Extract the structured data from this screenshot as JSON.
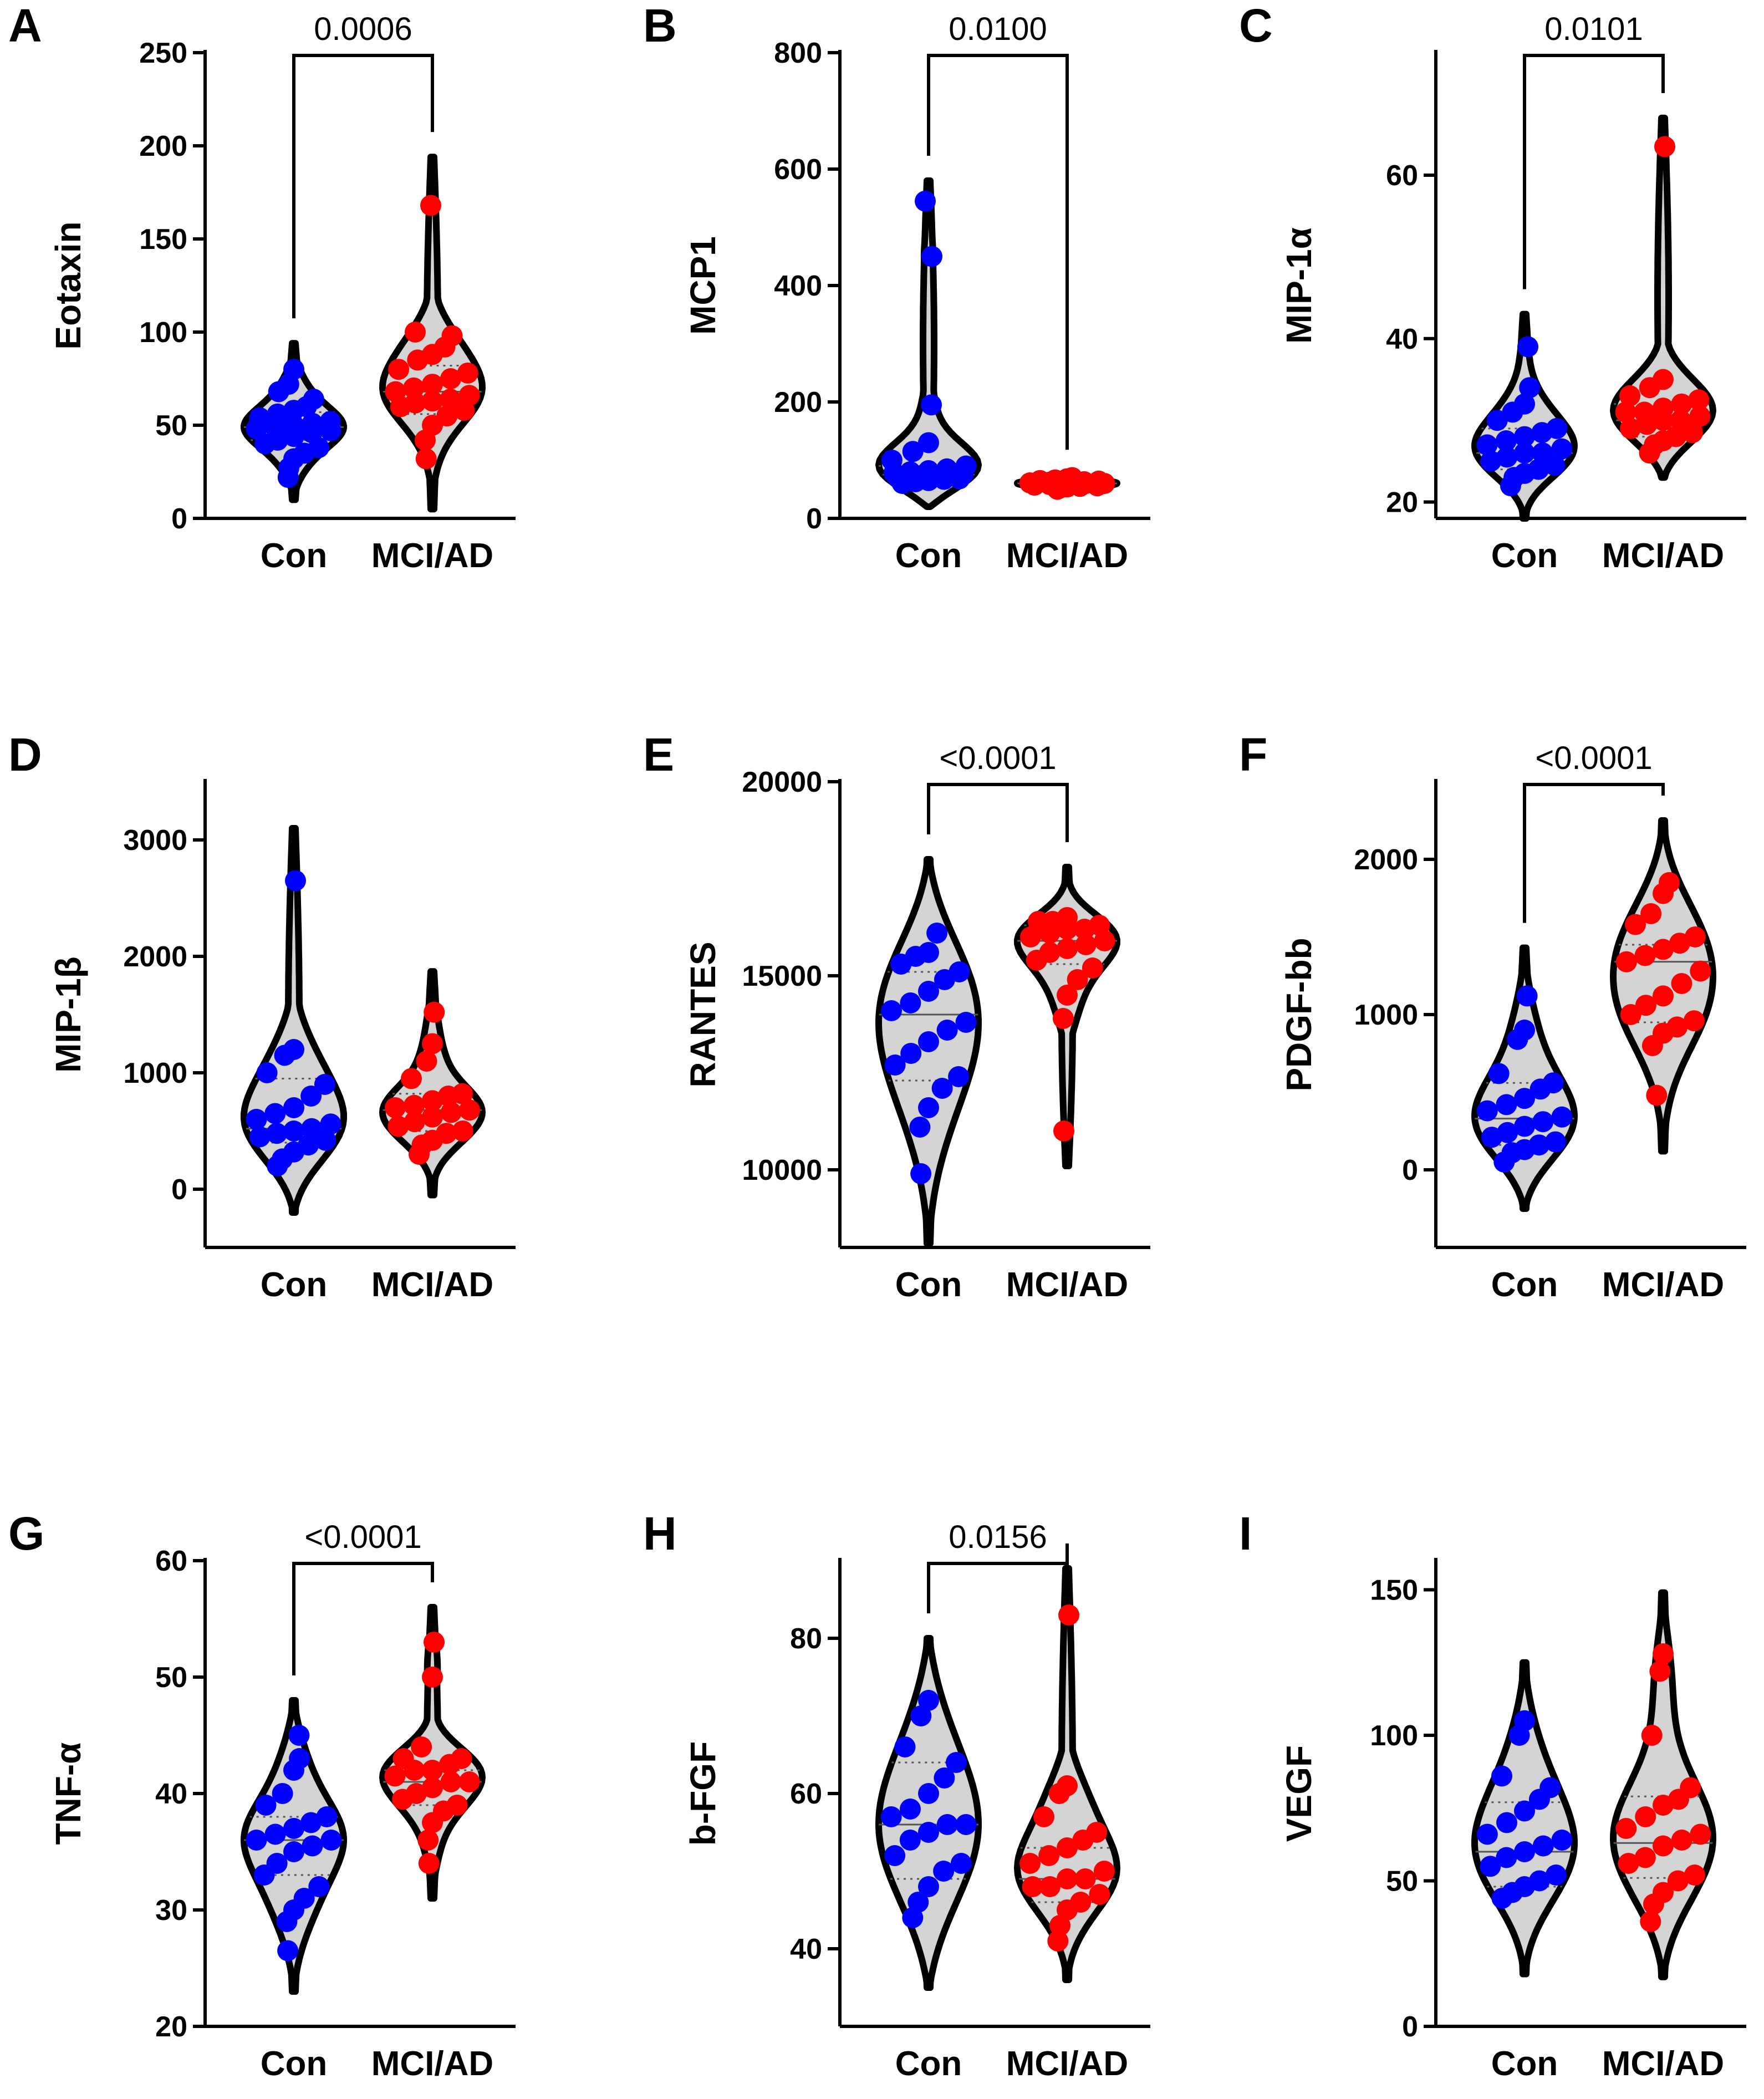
{
  "colors": {
    "con": "#0000ff",
    "mci": "#ff0000",
    "violin_fill": "#d4d4d4"
  },
  "categories": [
    "Con",
    "MCI/AD"
  ],
  "chart_data": [
    {
      "type": "violin",
      "panel": "A",
      "ylabel": "Eotaxin",
      "ylim": [
        0,
        250
      ],
      "yticks": [
        0,
        50,
        100,
        150,
        200,
        250
      ],
      "pvalue": "0.0006",
      "series": [
        {
          "name": "Con",
          "min": 10,
          "max": 94,
          "median": 49,
          "q1": 42,
          "q3": 57,
          "points": [
            22,
            27,
            32,
            35,
            38,
            40,
            42,
            44,
            46,
            47,
            48,
            49,
            50,
            51,
            52,
            54,
            56,
            58,
            60,
            64,
            68,
            72,
            80
          ]
        },
        {
          "name": "MCI/AD",
          "min": 5,
          "max": 194,
          "median": 68,
          "q1": 56,
          "q3": 82,
          "points": [
            32,
            42,
            50,
            55,
            58,
            60,
            62,
            63,
            64,
            66,
            68,
            70,
            72,
            75,
            78,
            80,
            85,
            88,
            92,
            98,
            100,
            168
          ]
        }
      ]
    },
    {
      "type": "violin",
      "panel": "B",
      "ylabel": "MCP1",
      "ylim": [
        0,
        800
      ],
      "yticks": [
        0,
        200,
        400,
        600,
        800
      ],
      "pvalue": "0.0100",
      "series": [
        {
          "name": "Con",
          "min": 20,
          "max": 580,
          "median": 75,
          "q1": 68,
          "q3": 90,
          "points": [
            60,
            63,
            65,
            67,
            68,
            70,
            72,
            73,
            75,
            76,
            78,
            80,
            82,
            85,
            90,
            100,
            115,
            130,
            195,
            450,
            545
          ]
        },
        {
          "name": "MCI/AD",
          "min": 45,
          "max": 75,
          "median": 60,
          "q1": 56,
          "q3": 64,
          "points": [
            50,
            52,
            54,
            55,
            56,
            57,
            58,
            59,
            60,
            60,
            61,
            62,
            62,
            63,
            64,
            65,
            66,
            68,
            70
          ]
        }
      ]
    },
    {
      "type": "violin",
      "panel": "C",
      "ylabel": "MIP-1α",
      "ylim": [
        18,
        75
      ],
      "yticks": [
        20,
        40,
        60
      ],
      "pvalue": "0.0101",
      "series": [
        {
          "name": "Con",
          "min": 18,
          "max": 43,
          "median": 26,
          "q1": 24,
          "q3": 29,
          "points": [
            22,
            23,
            23.5,
            24,
            24.5,
            25,
            25.5,
            26,
            26,
            26.5,
            27,
            27.5,
            28,
            28.5,
            29,
            30,
            31,
            32,
            34,
            39
          ]
        },
        {
          "name": "MCI/AD",
          "min": 23,
          "max": 67,
          "median": 30,
          "q1": 28,
          "q3": 32,
          "points": [
            26,
            27,
            27.5,
            28,
            28.5,
            29,
            29.5,
            30,
            30,
            30.5,
            31,
            31,
            31.5,
            32,
            32.5,
            33,
            34,
            35,
            63.5
          ]
        }
      ]
    },
    {
      "type": "violin",
      "panel": "D",
      "ylabel": "MIP-1β",
      "ylim": [
        -500,
        3500
      ],
      "yticks": [
        0,
        1000,
        2000,
        3000
      ],
      "pvalue": "",
      "series": [
        {
          "name": "Con",
          "min": -200,
          "max": 3100,
          "median": 520,
          "q1": 400,
          "q3": 950,
          "points": [
            200,
            260,
            320,
            380,
            420,
            450,
            480,
            500,
            520,
            560,
            600,
            650,
            700,
            800,
            900,
            1000,
            1150,
            1200,
            2650
          ]
        },
        {
          "name": "MCI/AD",
          "min": -50,
          "max": 1870,
          "median": 680,
          "q1": 500,
          "q3": 820,
          "points": [
            300,
            380,
            420,
            480,
            500,
            540,
            580,
            620,
            660,
            680,
            700,
            720,
            760,
            800,
            820,
            950,
            1100,
            1250,
            1520
          ]
        }
      ]
    },
    {
      "type": "violin",
      "panel": "E",
      "ylabel": "RANTES",
      "ylim": [
        8000,
        20000
      ],
      "yticks": [
        10000,
        15000,
        20000
      ],
      "pvalue": "<0.0001",
      "series": [
        {
          "name": "Con",
          "min": 8100,
          "max": 18000,
          "median": 14000,
          "q1": 12300,
          "q3": 15100,
          "points": [
            9900,
            11100,
            11600,
            12100,
            12400,
            12700,
            13000,
            13300,
            13600,
            13800,
            14100,
            14300,
            14600,
            14900,
            15100,
            15300,
            15500,
            15600,
            16100
          ]
        },
        {
          "name": "MCI/AD",
          "min": 10100,
          "max": 17800,
          "median": 15900,
          "q1": 15300,
          "q3": 16300,
          "points": [
            11000,
            13900,
            14500,
            14900,
            15200,
            15400,
            15600,
            15700,
            15800,
            15900,
            16000,
            16100,
            16200,
            16200,
            16300,
            16400,
            16400,
            16500
          ]
        }
      ]
    },
    {
      "type": "violin",
      "panel": "F",
      "ylabel": "PDGF-bb",
      "ylim": [
        -500,
        2500
      ],
      "yticks": [
        0,
        1000,
        2000
      ],
      "pvalue": "<0.0001",
      "series": [
        {
          "name": "Con",
          "min": -250,
          "max": 1430,
          "median": 330,
          "q1": 160,
          "q3": 560,
          "points": [
            50,
            110,
            130,
            160,
            180,
            210,
            240,
            280,
            310,
            340,
            380,
            420,
            460,
            520,
            560,
            620,
            840,
            900,
            1120
          ]
        },
        {
          "name": "MCI/AD",
          "min": 120,
          "max": 2250,
          "median": 1340,
          "q1": 950,
          "q3": 1450,
          "points": [
            480,
            800,
            880,
            920,
            960,
            1000,
            1060,
            1120,
            1200,
            1280,
            1340,
            1380,
            1420,
            1460,
            1500,
            1580,
            1650,
            1780,
            1850
          ]
        }
      ]
    },
    {
      "type": "violin",
      "panel": "G",
      "ylabel": "TNF-α",
      "ylim": [
        20,
        60
      ],
      "yticks": [
        20,
        30,
        40,
        50,
        60
      ],
      "pvalue": "<0.0001",
      "series": [
        {
          "name": "Con",
          "min": 23,
          "max": 48,
          "median": 36,
          "q1": 33,
          "q3": 38,
          "points": [
            26.5,
            29,
            30,
            31,
            32,
            33,
            34,
            35,
            35.5,
            36,
            36,
            36.5,
            37,
            37.5,
            38,
            39,
            40,
            42,
            43,
            45
          ]
        },
        {
          "name": "MCI/AD",
          "min": 31,
          "max": 56,
          "median": 41,
          "q1": 39,
          "q3": 42,
          "points": [
            34,
            36,
            37.5,
            38.5,
            39,
            39.5,
            40,
            40.5,
            41,
            41,
            41.5,
            42,
            42,
            42.5,
            43,
            43,
            44,
            50,
            53
          ]
        }
      ]
    },
    {
      "type": "violin",
      "panel": "H",
      "ylabel": "b-FGF",
      "ylim": [
        30,
        90
      ],
      "yticks": [
        40,
        60,
        80
      ],
      "pvalue": "0.0156",
      "series": [
        {
          "name": "Con",
          "min": 35,
          "max": 80,
          "median": 56,
          "q1": 49,
          "q3": 64,
          "points": [
            44,
            46,
            48,
            50,
            51,
            52,
            54,
            55,
            56,
            56,
            57,
            58,
            60,
            62,
            64,
            66,
            70,
            72
          ]
        },
        {
          "name": "MCI/AD",
          "min": 36,
          "max": 89,
          "median": 49,
          "q1": 46,
          "q3": 53,
          "points": [
            41,
            43,
            45,
            46,
            47,
            48,
            48,
            49,
            49,
            50,
            51,
            52,
            53,
            54,
            55,
            57,
            60,
            61,
            83
          ]
        }
      ]
    },
    {
      "type": "violin",
      "panel": "I",
      "ylabel": "VEGF",
      "ylim": [
        0,
        160
      ],
      "yticks": [
        0,
        50,
        100,
        150
      ],
      "pvalue": "",
      "series": [
        {
          "name": "Con",
          "min": 18,
          "max": 125,
          "median": 60,
          "q1": 48,
          "q3": 77,
          "points": [
            44,
            46,
            48,
            50,
            52,
            55,
            58,
            60,
            62,
            64,
            66,
            70,
            74,
            78,
            82,
            86,
            100,
            105
          ]
        },
        {
          "name": "MCI/AD",
          "min": 17,
          "max": 149,
          "median": 63,
          "q1": 51,
          "q3": 79,
          "points": [
            36,
            42,
            46,
            50,
            52,
            56,
            58,
            62,
            64,
            66,
            68,
            72,
            76,
            78,
            82,
            100,
            122,
            128
          ]
        }
      ]
    }
  ]
}
